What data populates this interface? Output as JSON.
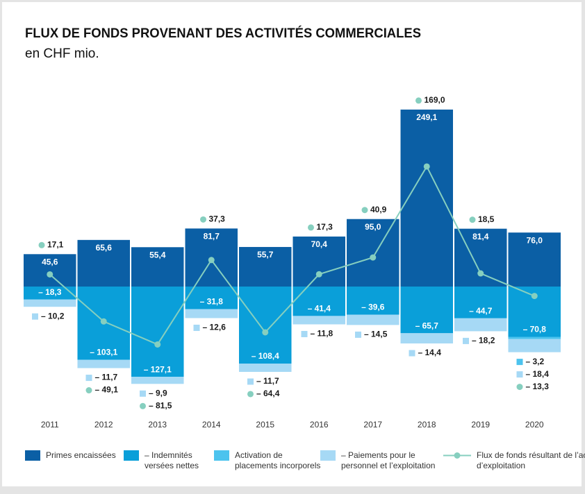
{
  "chart_data": {
    "type": "bar",
    "title": "FLUX DE FONDS PROVENANT DES ACTIVITÉS COMMERCIALES",
    "subtitle": "en CHF mio.",
    "categories": [
      "2011",
      "2012",
      "2013",
      "2014",
      "2015",
      "2016",
      "2017",
      "2018",
      "2019",
      "2020"
    ],
    "series": [
      {
        "name": "Primes encaissées",
        "color": "#0b5fa5",
        "type": "bar",
        "values": [
          45.6,
          65.6,
          55.4,
          81.7,
          55.7,
          70.4,
          95.0,
          249.1,
          81.4,
          76.0
        ],
        "value_labels": [
          "45,6",
          "65,6",
          "55,4",
          "81,7",
          "55,7",
          "70,4",
          "95,0",
          "249,1",
          "81,4",
          "76,0"
        ]
      },
      {
        "name": "– Indemnités versées nettes",
        "color": "#0a9fd9",
        "type": "bar",
        "values": [
          -18.3,
          -103.1,
          -127.1,
          -31.8,
          -108.4,
          -41.4,
          -39.6,
          -65.7,
          -44.7,
          -70.8
        ],
        "value_labels": [
          "– 18,3",
          "– 103,1",
          "– 127,1",
          "– 31,8",
          "– 108,4",
          "– 41,4",
          "– 39,6",
          "– 65,7",
          "– 44,7",
          "– 70,8"
        ]
      },
      {
        "name": "Activation de placements incorporels",
        "color": "#4cc3ee",
        "type": "bar",
        "values": [
          null,
          null,
          null,
          null,
          null,
          null,
          null,
          null,
          null,
          -3.2
        ],
        "value_labels": [
          null,
          null,
          null,
          null,
          null,
          null,
          null,
          null,
          null,
          "– 3,2"
        ]
      },
      {
        "name": "– Paiements pour le personnel et l’exploitation",
        "color": "#a6d9f5",
        "type": "bar",
        "values": [
          -10.2,
          -11.7,
          -9.9,
          -12.6,
          -11.7,
          -11.8,
          -14.5,
          -14.4,
          -18.2,
          -18.4
        ],
        "value_labels": [
          "– 10,2",
          "– 11,7",
          "– 9,9",
          "– 12,6",
          "– 11,7",
          "– 11,8",
          "– 14,5",
          "– 14,4",
          "– 18,2",
          "– 18,4"
        ]
      },
      {
        "name": "Flux de fonds résultant de l’activité d’exploitation",
        "color": "#86cfbf",
        "type": "line",
        "values": [
          17.1,
          -49.1,
          -81.5,
          37.3,
          -64.4,
          17.3,
          40.9,
          169.0,
          18.5,
          -13.3
        ],
        "value_labels": [
          "17,1",
          "– 49,1",
          "– 81,5",
          "37,3",
          "– 64,4",
          "17,3",
          "40,9",
          "169,0",
          "18,5",
          "– 13,3"
        ]
      }
    ]
  }
}
